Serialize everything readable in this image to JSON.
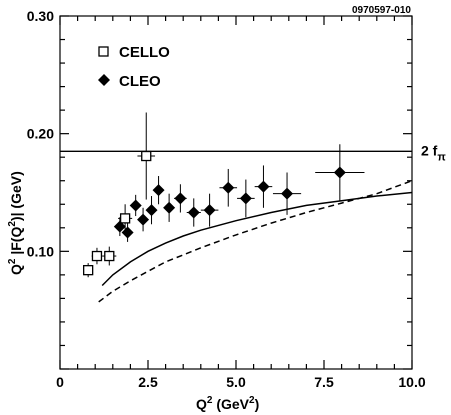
{
  "figure_code": "0970597-010",
  "chart_data": {
    "type": "scatter",
    "xlim": [
      0,
      10
    ],
    "ylim": [
      0,
      0.3
    ],
    "x_ticks": [
      {
        "value": 0,
        "label": "0"
      },
      {
        "value": 2.5,
        "label": "2.5"
      },
      {
        "value": 5.0,
        "label": "5.0"
      },
      {
        "value": 7.5,
        "label": "7.5"
      },
      {
        "value": 10.0,
        "label": "10.0"
      }
    ],
    "y_ticks": [
      {
        "value": 0.1,
        "label": "0.10"
      },
      {
        "value": 0.2,
        "label": "0.20"
      },
      {
        "value": 0.3,
        "label": "0.30"
      }
    ],
    "x_axis_label": {
      "main": "Q",
      "sup": "2",
      "mid": " (GeV",
      "sup2": "2",
      "end": ")"
    },
    "y_axis_label": {
      "main": "Q",
      "sup": "2",
      "rest": " |F(Q",
      "sup2": "2",
      "end": ")| (GeV)"
    },
    "reference_line": {
      "y": 0.185,
      "label_main": "2 f",
      "label_sub": "π"
    },
    "series": [
      {
        "name": "CELLO",
        "marker": "open-square",
        "points": [
          {
            "x": 0.8,
            "y": 0.084,
            "xerr": 0.1,
            "yerr": 0.006
          },
          {
            "x": 1.05,
            "y": 0.096,
            "xerr": 0.15,
            "yerr": 0.007
          },
          {
            "x": 1.4,
            "y": 0.096,
            "xerr": 0.2,
            "yerr": 0.008
          },
          {
            "x": 1.85,
            "y": 0.128,
            "xerr": 0.2,
            "yerr": 0.012
          },
          {
            "x": 2.45,
            "y": 0.181,
            "xerr": 0.25,
            "yerr": 0.037
          }
        ]
      },
      {
        "name": "CLEO",
        "marker": "filled-diamond",
        "points": [
          {
            "x": 1.7,
            "y": 0.121,
            "xerr": 0.1,
            "yerr": 0.008
          },
          {
            "x": 1.92,
            "y": 0.116,
            "xerr": 0.1,
            "yerr": 0.008
          },
          {
            "x": 2.15,
            "y": 0.139,
            "xerr": 0.1,
            "yerr": 0.009
          },
          {
            "x": 2.36,
            "y": 0.127,
            "xerr": 0.1,
            "yerr": 0.01
          },
          {
            "x": 2.6,
            "y": 0.135,
            "xerr": 0.1,
            "yerr": 0.012
          },
          {
            "x": 2.8,
            "y": 0.152,
            "xerr": 0.12,
            "yerr": 0.012
          },
          {
            "x": 3.1,
            "y": 0.137,
            "xerr": 0.15,
            "yerr": 0.012
          },
          {
            "x": 3.42,
            "y": 0.145,
            "xerr": 0.18,
            "yerr": 0.012
          },
          {
            "x": 3.8,
            "y": 0.133,
            "xerr": 0.2,
            "yerr": 0.012
          },
          {
            "x": 4.25,
            "y": 0.135,
            "xerr": 0.25,
            "yerr": 0.014
          },
          {
            "x": 4.78,
            "y": 0.154,
            "xerr": 0.25,
            "yerr": 0.016
          },
          {
            "x": 5.28,
            "y": 0.145,
            "xerr": 0.25,
            "yerr": 0.016
          },
          {
            "x": 5.78,
            "y": 0.155,
            "xerr": 0.25,
            "yerr": 0.018
          },
          {
            "x": 6.45,
            "y": 0.149,
            "xerr": 0.4,
            "yerr": 0.018
          },
          {
            "x": 7.95,
            "y": 0.167,
            "xerr": 0.7,
            "yerr": 0.024
          }
        ]
      }
    ],
    "curves": [
      {
        "style": "solid",
        "points": [
          [
            1.2,
            0.071
          ],
          [
            1.5,
            0.08
          ],
          [
            2.0,
            0.091
          ],
          [
            2.5,
            0.1
          ],
          [
            3.0,
            0.107
          ],
          [
            3.5,
            0.113
          ],
          [
            4.0,
            0.118
          ],
          [
            5.0,
            0.126
          ],
          [
            6.0,
            0.133
          ],
          [
            7.0,
            0.139
          ],
          [
            8.0,
            0.143
          ],
          [
            9.0,
            0.147
          ],
          [
            10.0,
            0.15
          ]
        ]
      },
      {
        "style": "dashed",
        "points": [
          [
            1.1,
            0.057
          ],
          [
            1.5,
            0.066
          ],
          [
            2.0,
            0.075
          ],
          [
            2.5,
            0.083
          ],
          [
            3.0,
            0.091
          ],
          [
            3.5,
            0.097
          ],
          [
            4.0,
            0.103
          ],
          [
            5.0,
            0.114
          ],
          [
            6.0,
            0.124
          ],
          [
            7.0,
            0.133
          ],
          [
            8.0,
            0.141
          ],
          [
            9.0,
            0.149
          ],
          [
            10.0,
            0.16
          ]
        ]
      }
    ]
  }
}
